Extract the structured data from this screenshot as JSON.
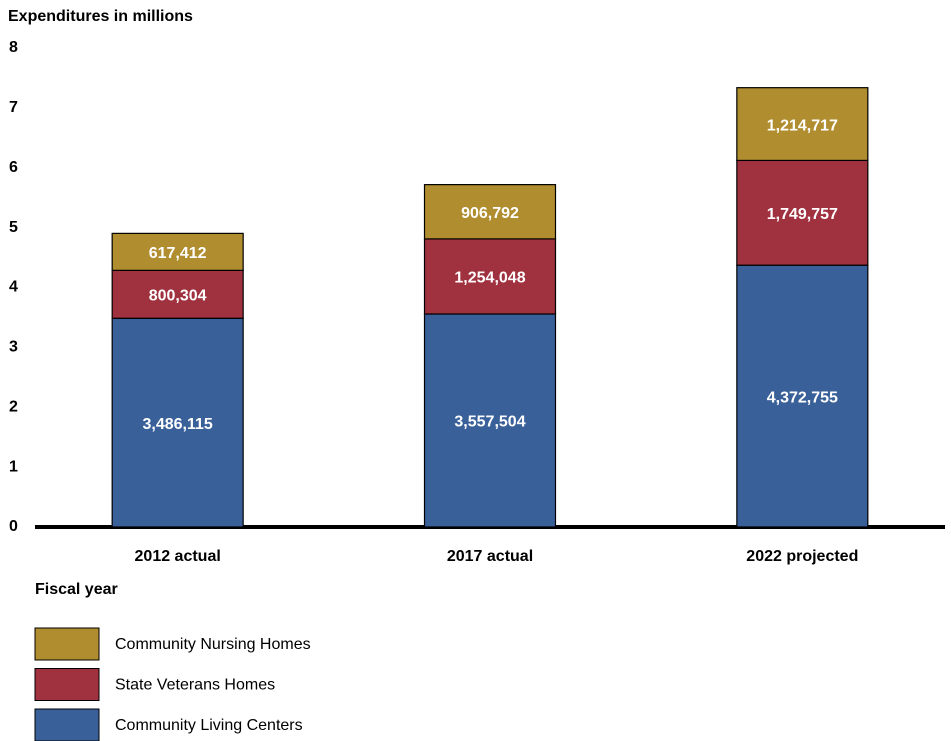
{
  "chart_data": {
    "type": "bar",
    "stacked": true,
    "title": "Expenditures in millions",
    "x_label": "Fiscal year",
    "categories": [
      "2012 actual",
      "2017 actual",
      "2022 projected"
    ],
    "series": [
      {
        "name": "Community Living Centers",
        "color": "#3a6099",
        "values": [
          3.486115,
          3.557504,
          4.372755
        ],
        "value_labels": [
          "3,486,115",
          "3,557,504",
          "4,372,755"
        ]
      },
      {
        "name": "State Veterans Homes",
        "color": "#a0313f",
        "values": [
          0.800304,
          1.254048,
          1.749757
        ],
        "value_labels": [
          "800,304",
          "1,254,048",
          "1,749,757"
        ]
      },
      {
        "name": "Community Nursing Homes",
        "color": "#b08d2e",
        "values": [
          0.617412,
          0.906792,
          1.214717
        ],
        "value_labels": [
          "617,412",
          "906,792",
          "1,214,717"
        ]
      }
    ],
    "ylim": [
      0,
      8
    ],
    "yticks": [
      0,
      1,
      2,
      3,
      4,
      5,
      6,
      7,
      8
    ]
  }
}
